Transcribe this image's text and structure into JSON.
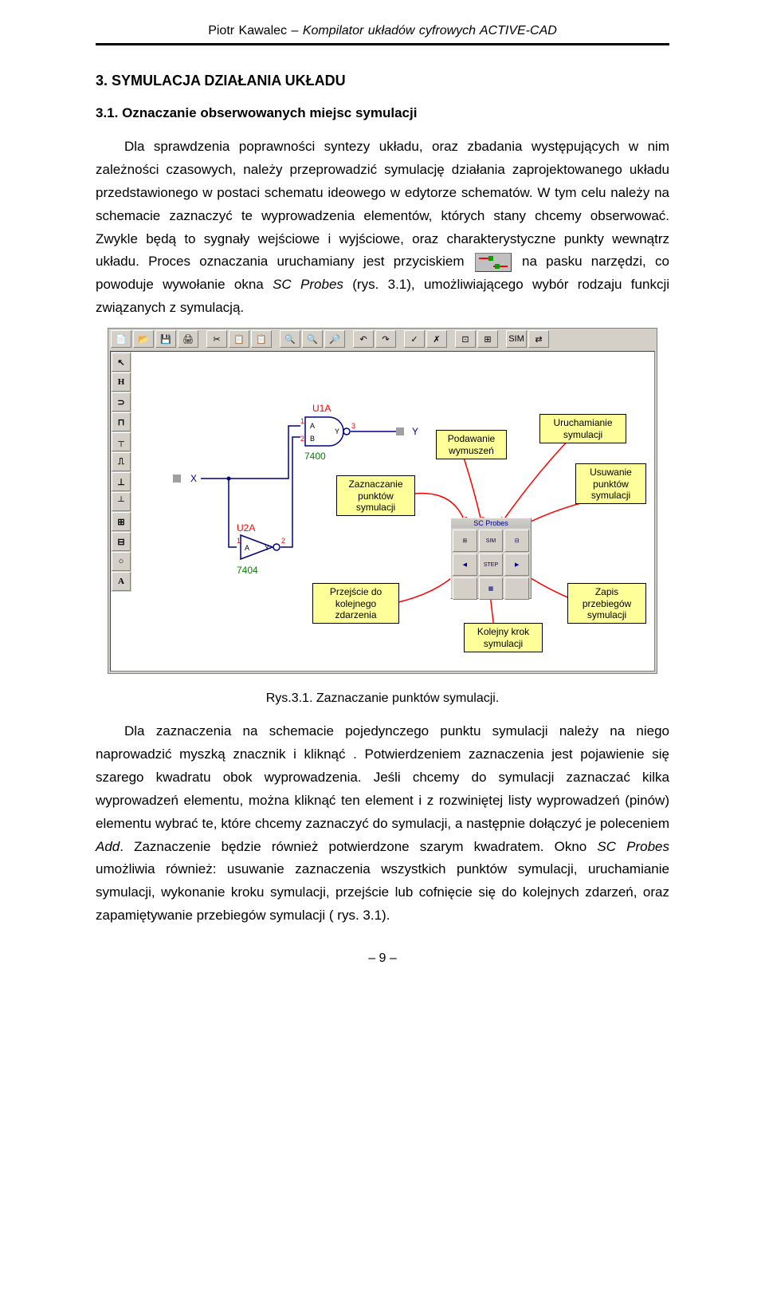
{
  "header": {
    "author": "Piotr Kawalec",
    "sep": "–",
    "title": "Kompilator układów cyfrowych ACTIVE-CAD"
  },
  "section": {
    "num_title": "3. SYMULACJA DZIAŁANIA UKŁADU",
    "sub_num_title": "3.1. Oznaczanie obserwowanych miejsc symulacji",
    "para1a": "Dla sprawdzenia poprawności syntezy układu, oraz zbadania występujących w nim zależności czasowych, należy przeprowadzić symulację działania zaprojektowanego układu przedstawionego w postaci schematu ideowego w edytorze schematów. W tym celu należy na schemacie zaznaczyć te wyprowadzenia elementów, których stany chcemy obserwować. Zwykle będą to sygnały wejściowe i wyjściowe, oraz charakterystyczne punkty wewnątrz układu. Proces oznaczania uruchamiany jest przyciskiem",
    "para1b": "na pasku narzędzi, co powoduje wywołanie okna",
    "para1c": "SC Probes",
    "para1d": "(rys. 3.1), umożliwiającego wybór rodzaju funkcji związanych z symulacją.",
    "para2": "Dla zaznaczenia na schemacie pojedynczego punktu symulacji należy na niego naprowadzić myszką znacznik i kliknąć . Potwierdzeniem zaznaczenia jest pojawienie się szarego kwadratu obok wyprowadzenia. Jeśli chcemy do symulacji zaznaczać kilka wyprowadzeń elementu, można kliknąć ten element i z rozwiniętej listy wyprowadzeń (pinów) elementu wybrać te, które chcemy zaznaczyć do symulacji, a następnie dołączyć je poleceniem",
    "para2_add": "Add",
    "para2b": ". Zaznaczenie będzie również potwierdzone szarym kwadratem. Okno",
    "para2_sc": "SC Probes",
    "para2c": "umożliwia również: usuwanie zaznaczenia wszystkich punktów symulacji, uruchamianie symulacji, wykonanie kroku symulacji, przejście lub cofnięcie się do kolejnych zdarzeń, oraz zapamiętywanie przebiegów symulacji ( rys. 3.1)."
  },
  "figure": {
    "toolbar_icons": [
      "📄",
      "📂",
      "💾",
      "🖨",
      "",
      "✂",
      "📋",
      "📋",
      "",
      "🔍",
      "🔍",
      "🔎",
      "",
      "↶",
      "↷",
      "",
      "✓",
      "✗",
      "",
      "⊡",
      "⊞",
      "",
      "SIM",
      "⇄"
    ],
    "side_icons": [
      "↖",
      "H",
      "⊃",
      "⊓",
      "┬",
      "⎍",
      "⊥",
      "┴",
      "⊞",
      "⊟",
      "○",
      "A"
    ],
    "schematic": {
      "u1a": "U1A",
      "u1a_part": "7400",
      "u2a": "U2A",
      "u2a_part": "7404",
      "pinA": "A",
      "pinB": "B",
      "pinY": "Y",
      "p1": "1",
      "p2": "2",
      "p3": "3",
      "labelX": "X",
      "labelY": "Y",
      "colors": {
        "wire": "#000080",
        "pin_red": "#ff0000",
        "part_text": "#008000",
        "box": "#a0a0a0"
      }
    },
    "callouts": {
      "zaznaczanie": "Zaznaczanie punktów symulacji",
      "podawanie": "Podawanie wymuszeń",
      "uruchamianie": "Uruchamianie symulacji",
      "usuwanie": "Usuwanie punktów symulacji",
      "przejscie": "Przejście do kolejnego zdarzenia",
      "kolejny": "Kolejny krok symulacji",
      "zapis": "Zapis przebiegów symulacji",
      "box_bg": "#ffff99",
      "arrow_color": "#ff0000"
    },
    "sc_probes": {
      "title": "SC Probes",
      "btns": [
        "⊞",
        "SIM",
        "⊟",
        "◀",
        "STEP",
        "▶",
        "",
        "▦",
        ""
      ]
    },
    "caption": "Rys.3.1. Zaznaczanie punktów symulacji."
  },
  "footer": {
    "page": "– 9 –"
  }
}
